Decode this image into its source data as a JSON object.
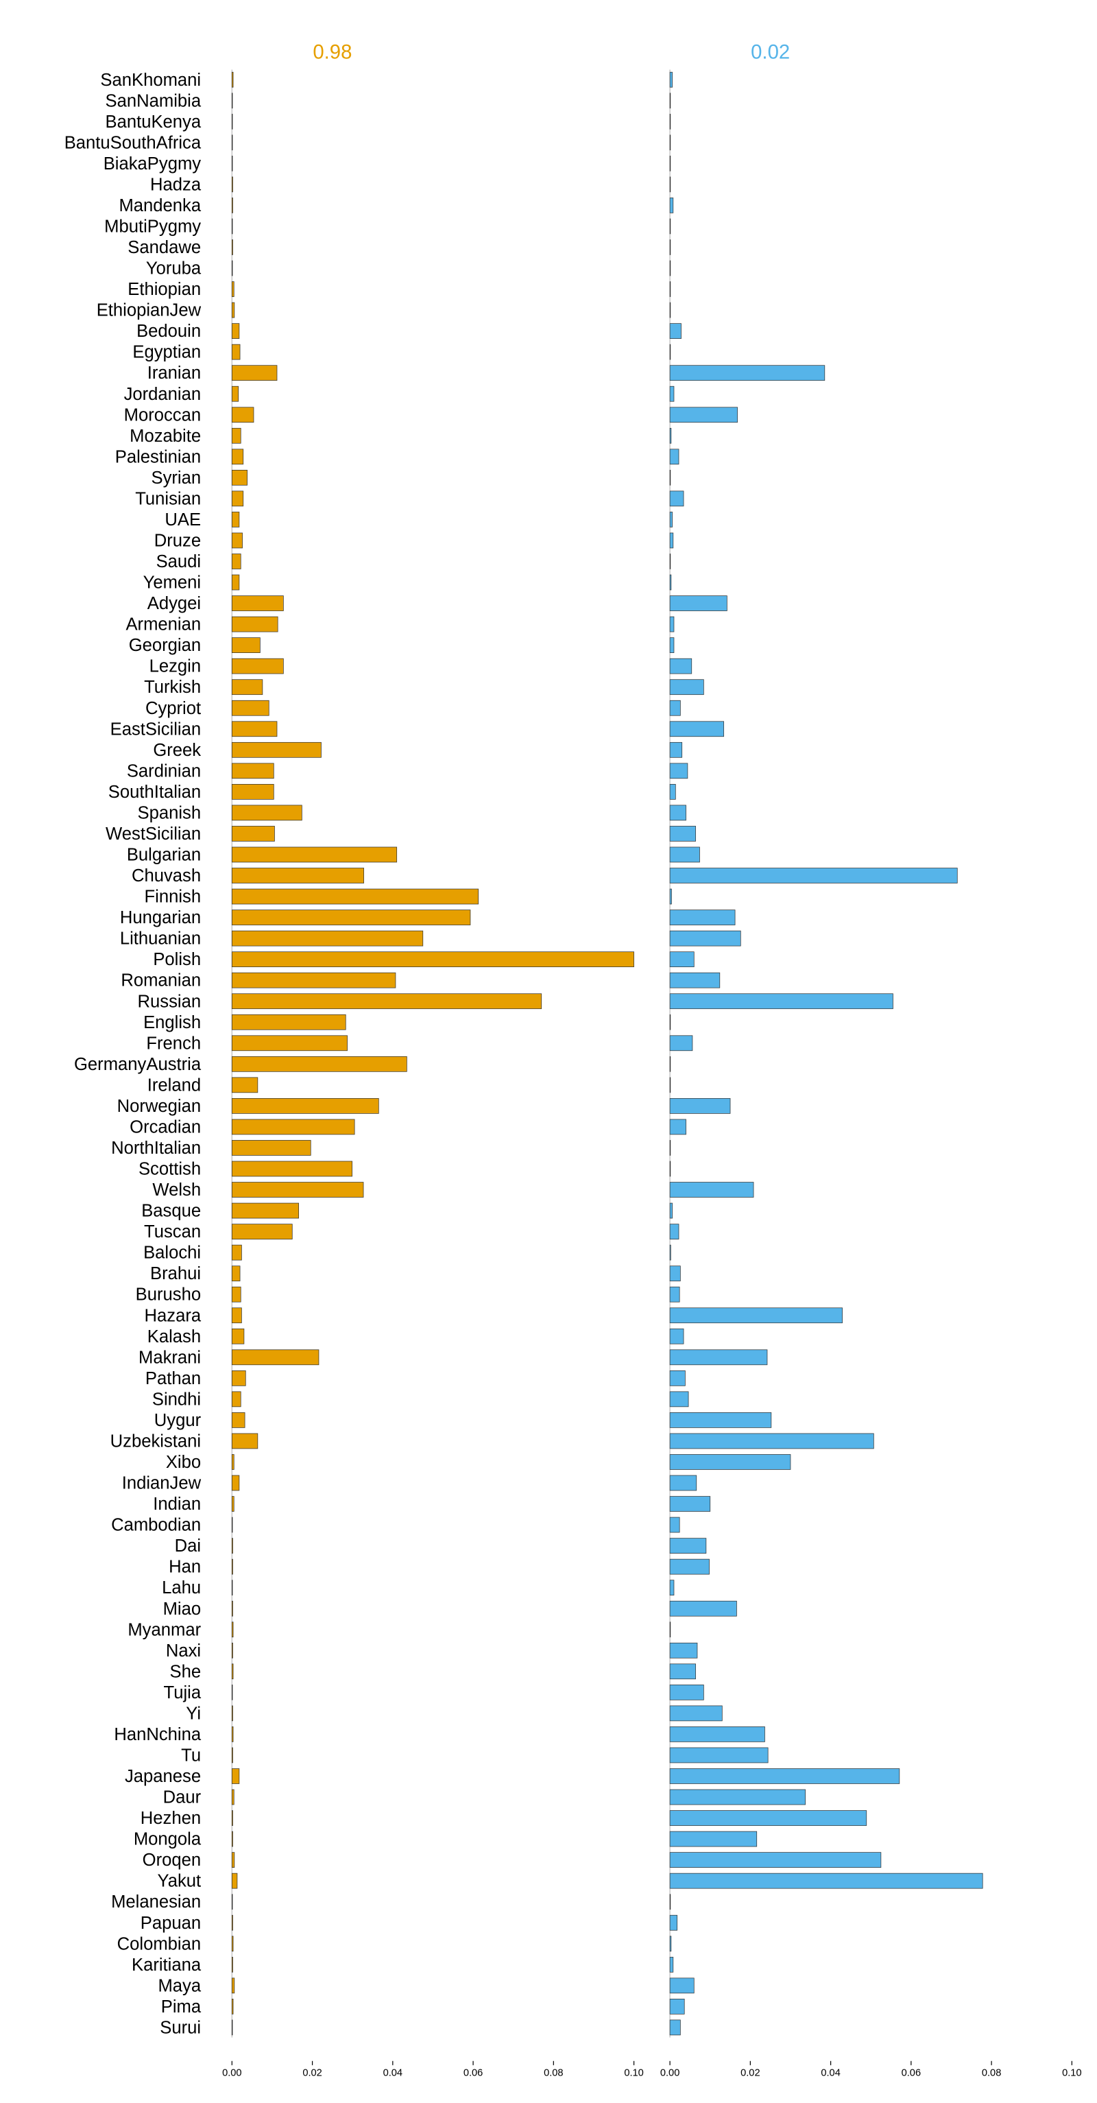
{
  "chart_data": {
    "type": "bar",
    "orientation": "horizontal",
    "categories": [
      "SanKhomani",
      "SanNamibia",
      "BantuKenya",
      "BantuSouthAfrica",
      "BiakaPygmy",
      "Hadza",
      "Mandenka",
      "MbutiPygmy",
      "Sandawe",
      "Yoruba",
      "Ethiopian",
      "EthiopianJew",
      "Bedouin",
      "Egyptian",
      "Iranian",
      "Jordanian",
      "Moroccan",
      "Mozabite",
      "Palestinian",
      "Syrian",
      "Tunisian",
      "UAE",
      "Druze",
      "Saudi",
      "Yemeni",
      "Adygei",
      "Armenian",
      "Georgian",
      "Lezgin",
      "Turkish",
      "Cypriot",
      "EastSicilian",
      "Greek",
      "Sardinian",
      "SouthItalian",
      "Spanish",
      "WestSicilian",
      "Bulgarian",
      "Chuvash",
      "Finnish",
      "Hungarian",
      "Lithuanian",
      "Polish",
      "Romanian",
      "Russian",
      "English",
      "French",
      "GermanyAustria",
      "Ireland",
      "Norwegian",
      "Orcadian",
      "NorthItalian",
      "Scottish",
      "Welsh",
      "Basque",
      "Tuscan",
      "Balochi",
      "Brahui",
      "Burusho",
      "Hazara",
      "Kalash",
      "Makrani",
      "Pathan",
      "Sindhi",
      "Uygur",
      "Uzbekistani",
      "Xibo",
      "IndianJew",
      "Indian",
      "Cambodian",
      "Dai",
      "Han",
      "Lahu",
      "Miao",
      "Myanmar",
      "Naxi",
      "She",
      "Tujia",
      "Yi",
      "HanNchina",
      "Tu",
      "Japanese",
      "Daur",
      "Hezhen",
      "Mongola",
      "Oroqen",
      "Yakut",
      "Melanesian",
      "Papuan",
      "Colombian",
      "Karitiana",
      "Maya",
      "Pima",
      "Surui"
    ],
    "series": [
      {
        "name": "0.98",
        "color": "#E69F00",
        "values": [
          0.0003,
          0.0001,
          0.0001,
          0.0001,
          0.0001,
          0.0002,
          0.0002,
          0.0001,
          0.0002,
          0.0001,
          0.0005,
          0.0006,
          0.0018,
          0.002,
          0.0112,
          0.0016,
          0.0054,
          0.0022,
          0.0028,
          0.0038,
          0.0028,
          0.0018,
          0.0026,
          0.0022,
          0.0018,
          0.0128,
          0.0114,
          0.007,
          0.0128,
          0.0076,
          0.0092,
          0.0112,
          0.0222,
          0.0104,
          0.0104,
          0.0174,
          0.0106,
          0.041,
          0.0328,
          0.0613,
          0.0593,
          0.0475,
          0.1,
          0.0407,
          0.077,
          0.0283,
          0.0287,
          0.0435,
          0.0064,
          0.0365,
          0.0305,
          0.0196,
          0.0299,
          0.0327,
          0.0166,
          0.015,
          0.0024,
          0.002,
          0.0022,
          0.0024,
          0.003,
          0.0216,
          0.0034,
          0.0022,
          0.0032,
          0.0064,
          0.0005,
          0.0018,
          0.0005,
          0.0001,
          0.0002,
          0.0002,
          0.0001,
          0.0002,
          0.0003,
          0.0002,
          0.0003,
          0.0001,
          0.0002,
          0.0003,
          0.0002,
          0.0018,
          0.0005,
          0.0002,
          0.0002,
          0.0006,
          0.0013,
          0.0001,
          0.0002,
          0.0003,
          0.0002,
          0.0006,
          0.0003,
          0.0001
        ]
      },
      {
        "name": "0.02",
        "color": "#56B4E9",
        "values": [
          0.0006,
          0.0001,
          0.0001,
          0,
          0,
          0,
          0.0008,
          0,
          0.0001,
          0,
          0.0001,
          0.0001,
          0.0028,
          0.0001,
          0.0385,
          0.001,
          0.0168,
          0.0003,
          0.0022,
          0.0001,
          0.0034,
          0.0006,
          0.0008,
          0.0001,
          0.0003,
          0.0142,
          0.001,
          0.001,
          0.0054,
          0.0084,
          0.0026,
          0.0134,
          0.003,
          0.0044,
          0.0014,
          0.004,
          0.0064,
          0.0074,
          0.0715,
          0.0004,
          0.0162,
          0.0176,
          0.006,
          0.0124,
          0.0555,
          0.0001,
          0.0056,
          0.0001,
          0.0001,
          0.015,
          0.004,
          0.0001,
          0.0001,
          0.0208,
          0.0006,
          0.0022,
          0.0002,
          0.0026,
          0.0024,
          0.0429,
          0.0034,
          0.0242,
          0.0038,
          0.0046,
          0.0252,
          0.0507,
          0.03,
          0.0066,
          0.01,
          0.0024,
          0.009,
          0.0098,
          0.001,
          0.0166,
          0.0001,
          0.0068,
          0.0064,
          0.0084,
          0.013,
          0.0236,
          0.0244,
          0.0571,
          0.0337,
          0.0489,
          0.0216,
          0.0525,
          0.0778,
          0.0001,
          0.0018,
          0.0003,
          0.0008,
          0.006,
          0.0036,
          0.0026
        ]
      }
    ],
    "xlim": [
      0,
      0.1
    ],
    "xticks": [
      "0.00",
      "0.02",
      "0.04",
      "0.06",
      "0.08",
      "0.10"
    ],
    "grid": false,
    "xlabel": "",
    "ylabel": ""
  }
}
